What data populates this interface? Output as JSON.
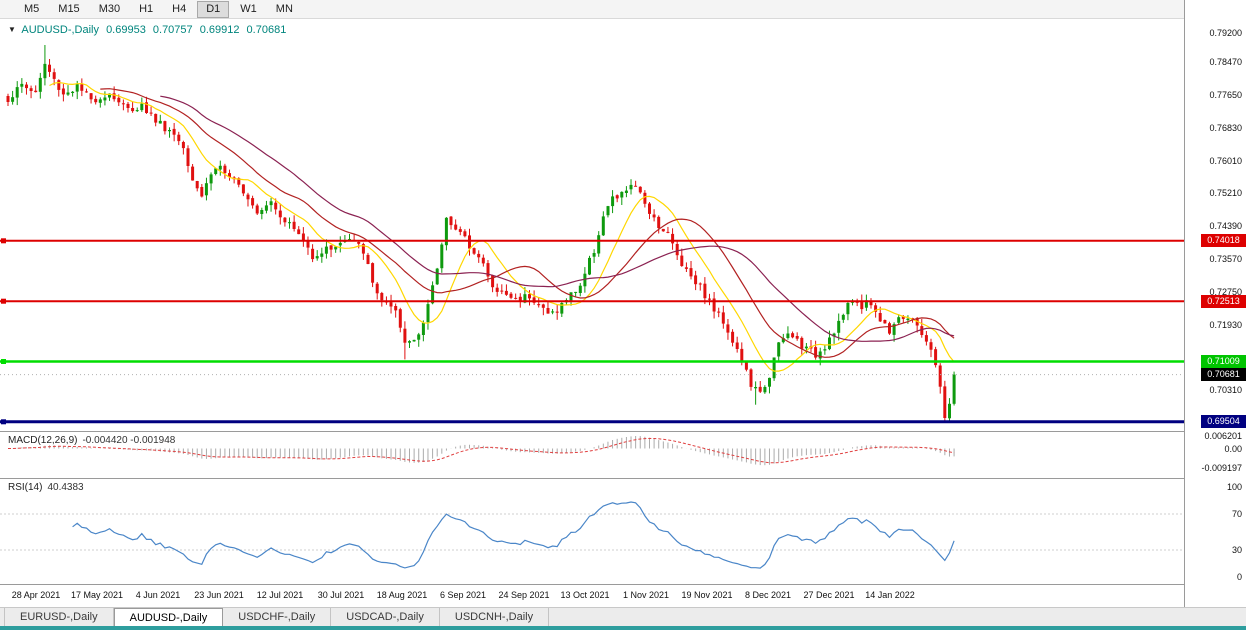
{
  "toolbar": {
    "timeframes": [
      "M5",
      "M15",
      "M30",
      "H1",
      "H4",
      "D1",
      "W1",
      "MN"
    ],
    "active": "D1"
  },
  "symbol_header": {
    "symbol": "AUDUSD-,Daily",
    "open": "0.69953",
    "high": "0.70757",
    "low": "0.69912",
    "close": "0.70681"
  },
  "price_axis": {
    "labels": [
      "0.79200",
      "0.78470",
      "0.77650",
      "0.76830",
      "0.76010",
      "0.75210",
      "0.74390",
      "0.73570",
      "0.72750",
      "0.71930",
      "0.70310"
    ],
    "tags": [
      {
        "text": "0.74018",
        "color": "#DD0000"
      },
      {
        "text": "0.72513",
        "color": "#DD0000"
      },
      {
        "text": "0.71009",
        "color": "#00C400"
      },
      {
        "text": "0.70681",
        "color": "#000000"
      },
      {
        "text": "0.69504",
        "color": "#000080"
      }
    ]
  },
  "macd_panel": {
    "label": "MACD(12,26,9)",
    "values": "-0.004420 -0.001948",
    "axis": [
      "0.006201",
      "0.00",
      "-0.009197"
    ]
  },
  "rsi_panel": {
    "label": "RSI(14)",
    "value": "40.4383",
    "axis": [
      "100",
      "70",
      "30",
      "0"
    ]
  },
  "tabs": {
    "items": [
      "EURUSD-,Daily",
      "AUDUSD-,Daily",
      "USDCHF-,Daily",
      "USDCAD-,Daily",
      "USDCNH-,Daily"
    ],
    "active": "AUDUSD-,Daily"
  },
  "chart_data": {
    "type": "candlestick",
    "symbol": "AUDUSD",
    "timeframe": "Daily",
    "ylim": [
      0.693,
      0.794
    ],
    "num_candles": 206,
    "current_price": 0.70681,
    "current_ohlc": {
      "o": 0.69953,
      "h": 0.70757,
      "l": 0.69912,
      "c": 0.70681
    },
    "up_color": "#0E9A0E",
    "down_color": "#E01010",
    "dates": [
      "28 Apr 2021",
      "17 May 2021",
      "4 Jun 2021",
      "23 Jun 2021",
      "12 Jul 2021",
      "30 Jul 2021",
      "18 Aug 2021",
      "6 Sep 2021",
      "24 Sep 2021",
      "13 Oct 2021",
      "1 Nov 2021",
      "19 Nov 2021",
      "8 Dec 2021",
      "27 Dec 2021",
      "14 Jan 2022"
    ],
    "levels": [
      {
        "price": 0.74018,
        "color": "#DD0000",
        "width": 2
      },
      {
        "price": 0.72513,
        "color": "#DD0000",
        "width": 2
      },
      {
        "price": 0.71009,
        "color": "#00DD00",
        "width": 2.5
      },
      {
        "price": 0.69504,
        "color": "#000080",
        "width": 3
      }
    ],
    "ma": [
      {
        "period": 10,
        "color": "#FFD700"
      },
      {
        "period": 21,
        "color": "#B22222"
      },
      {
        "period": 34,
        "color": "#8B2252"
      }
    ],
    "anchors": [
      [
        0,
        0.7755
      ],
      [
        3,
        0.779
      ],
      [
        6,
        0.7772
      ],
      [
        8,
        0.7842
      ],
      [
        10,
        0.7802
      ],
      [
        12,
        0.7768
      ],
      [
        15,
        0.7786
      ],
      [
        18,
        0.7752
      ],
      [
        22,
        0.777
      ],
      [
        26,
        0.7728
      ],
      [
        29,
        0.774
      ],
      [
        32,
        0.7703
      ],
      [
        36,
        0.7668
      ],
      [
        38,
        0.7638
      ],
      [
        40,
        0.756
      ],
      [
        42,
        0.7516
      ],
      [
        44,
        0.7572
      ],
      [
        46,
        0.759
      ],
      [
        48,
        0.7553
      ],
      [
        51,
        0.753
      ],
      [
        54,
        0.7478
      ],
      [
        57,
        0.7504
      ],
      [
        59,
        0.7468
      ],
      [
        63,
        0.7418
      ],
      [
        66,
        0.7366
      ],
      [
        69,
        0.738
      ],
      [
        71,
        0.7392
      ],
      [
        74,
        0.7404
      ],
      [
        77,
        0.7378
      ],
      [
        79,
        0.7294
      ],
      [
        81,
        0.7256
      ],
      [
        84,
        0.7218
      ],
      [
        86,
        0.7146
      ],
      [
        88,
        0.7158
      ],
      [
        90,
        0.72
      ],
      [
        92,
        0.7282
      ],
      [
        94,
        0.739
      ],
      [
        95,
        0.7466
      ],
      [
        97,
        0.743
      ],
      [
        99,
        0.7404
      ],
      [
        101,
        0.738
      ],
      [
        103,
        0.7342
      ],
      [
        105,
        0.7282
      ],
      [
        108,
        0.7268
      ],
      [
        110,
        0.7255
      ],
      [
        113,
        0.7268
      ],
      [
        115,
        0.7243
      ],
      [
        117,
        0.7218
      ],
      [
        119,
        0.723
      ],
      [
        121,
        0.7255
      ],
      [
        124,
        0.7292
      ],
      [
        127,
        0.738
      ],
      [
        129,
        0.7464
      ],
      [
        131,
        0.7504
      ],
      [
        133,
        0.7516
      ],
      [
        135,
        0.7544
      ],
      [
        137,
        0.7516
      ],
      [
        139,
        0.7478
      ],
      [
        141,
        0.7442
      ],
      [
        143,
        0.7418
      ],
      [
        145,
        0.7366
      ],
      [
        147,
        0.733
      ],
      [
        149,
        0.7304
      ],
      [
        151,
        0.7268
      ],
      [
        153,
        0.723
      ],
      [
        155,
        0.7204
      ],
      [
        157,
        0.7154
      ],
      [
        159,
        0.7104
      ],
      [
        161,
        0.7042
      ],
      [
        163,
        0.7018
      ],
      [
        165,
        0.7068
      ],
      [
        167,
        0.7142
      ],
      [
        169,
        0.7168
      ],
      [
        171,
        0.7154
      ],
      [
        173,
        0.713
      ],
      [
        175,
        0.7118
      ],
      [
        177,
        0.7142
      ],
      [
        179,
        0.718
      ],
      [
        181,
        0.7218
      ],
      [
        183,
        0.7254
      ],
      [
        185,
        0.7242
      ],
      [
        187,
        0.7248
      ],
      [
        189,
        0.7204
      ],
      [
        191,
        0.718
      ],
      [
        193,
        0.7218
      ],
      [
        195,
        0.7204
      ],
      [
        197,
        0.7192
      ],
      [
        199,
        0.7154
      ],
      [
        201,
        0.7092
      ],
      [
        202,
        0.703
      ],
      [
        203,
        0.6966
      ],
      [
        204,
        0.6996
      ],
      [
        205,
        0.70681
      ]
    ],
    "key_candles": [
      {
        "i": 8,
        "h": 0.789
      },
      {
        "i": 86,
        "l": 0.7106
      },
      {
        "i": 135,
        "h": 0.75555
      },
      {
        "i": 162,
        "l": 0.6993
      },
      {
        "i": 203,
        "l": 0.69504
      },
      {
        "i": 204,
        "c": 0.69953
      },
      {
        "i": 205,
        "o": 0.69953,
        "h": 0.70757,
        "l": 0.69912,
        "c": 0.70681
      }
    ]
  }
}
